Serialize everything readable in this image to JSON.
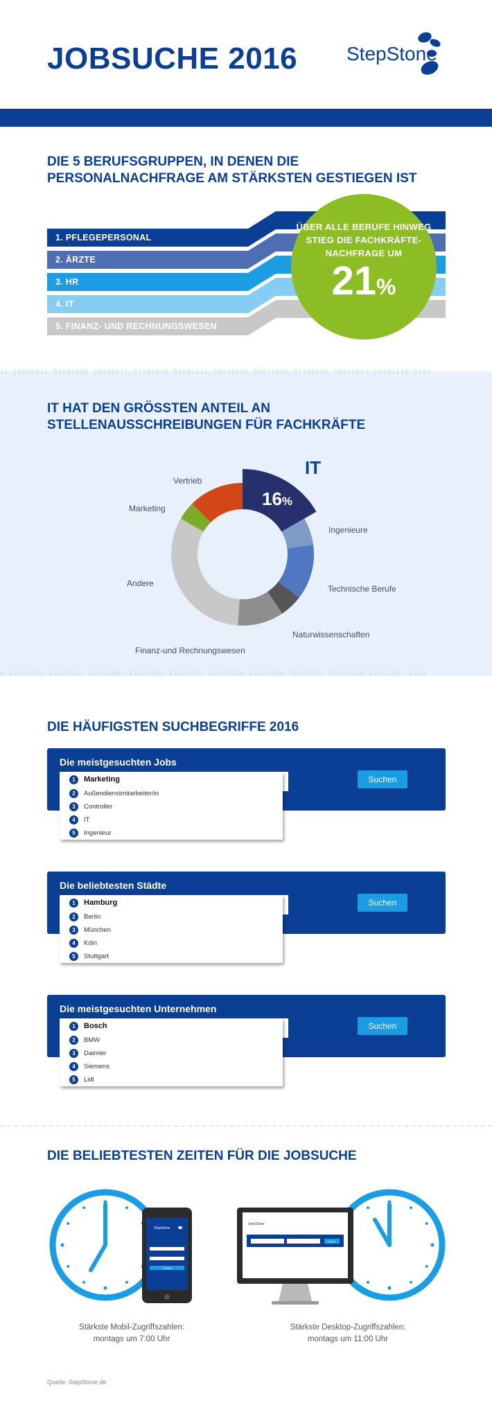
{
  "header": {
    "title": "JOBSUCHE 2016",
    "logo": "StepStone"
  },
  "section1": {
    "title": "DIE 5 BERUFSGRUPPEN, IN DENEN DIE PERSONALNACHFRAGE AM STÄRKSTEN GESTIEGEN IST",
    "rows": [
      {
        "label": "1. PFLEGEPERSONAL",
        "color": "#0a3f95"
      },
      {
        "label": "2. ÄRZTE",
        "color": "#4f6db2"
      },
      {
        "label": "3. HR",
        "color": "#1a9de2"
      },
      {
        "label": "4. IT",
        "color": "#87cdf3"
      },
      {
        "label": "5. FINANZ- UND RECHNUNGSWESEN",
        "color": "#c8c8c8"
      }
    ],
    "circle_text": "ÜBER ALLE BERUFE HINWEG STIEG DIE FACHKRÄFTE-NACHFRAGE UM",
    "circle_value": "21",
    "circle_unit": "%",
    "circle_color": "#8cbd24"
  },
  "section2": {
    "title": "IT HAT DEN GRÖSSTEN ANTEIL AN STELLENAUSSCHREIBUNGEN FÜR FACHKRÄFTE",
    "binary_top": "11 10010011 01001000 10100111 01101010 01001111 00110101 00011001 01100101 10011011 10101110 0101",
    "binary_bottom": "0 11001001 11100111 10011001 11101001 11100101 10110110 11101000 10100011 00010110 11001001 1110",
    "highlight_label": "IT",
    "highlight_value": "16",
    "highlight_unit": "%"
  },
  "chart_data": {
    "type": "pie",
    "title": "IT HAT DEN GRÖSSTEN ANTEIL AN STELLENAUSSCHREIBUNGEN FÜR FACHKRÄFTE",
    "series": [
      {
        "name": "IT",
        "value": 16,
        "color": "#26306c"
      },
      {
        "name": "Ingenieure",
        "value": 6,
        "color": "#7e9bc8"
      },
      {
        "name": "Technische Berufe",
        "value": 12,
        "color": "#5077c2"
      },
      {
        "name": "Naturwissenschaften",
        "value": 5,
        "color": "#555555"
      },
      {
        "name": "Finanz-und Rechnungswesen",
        "value": 10,
        "color": "#8e8e8e"
      },
      {
        "name": "Andere",
        "value": 31,
        "color": "#c8c8c8"
      },
      {
        "name": "Marketing",
        "value": 4,
        "color": "#79ad29"
      },
      {
        "name": "Vertrieb",
        "value": 12,
        "color": "#d34618"
      }
    ]
  },
  "section3": {
    "title": "DIE HÄUFIGSTEN SUCHBEGRIFFE 2016",
    "boxes": [
      {
        "title": "Die meistgesuchten Jobs",
        "button": "Suchen",
        "items": [
          "Marketing",
          "Außendienstmitarbeiter/in",
          "Controller",
          "IT",
          "Ingenieur"
        ]
      },
      {
        "title": "Die beliebtesten Städte",
        "button": "Suchen",
        "items": [
          "Hamburg",
          "Berlin",
          "München",
          "Köln",
          "Stuttgart"
        ]
      },
      {
        "title": "Die meistgesuchten Unternehmen",
        "button": "Suchen",
        "items": [
          "Bosch",
          "BMW",
          "Daimler",
          "Siemens",
          "Lidl"
        ]
      }
    ]
  },
  "section4": {
    "title": "DIE BELIEBTESTEN ZEITEN FÜR DIE JOBSUCHE",
    "mobile_caption_1": "Stärkste Mobil-Zugriffszahlen:",
    "mobile_caption_2": "montags um 7:00 Uhr",
    "desktop_caption_1": "Stärkste Desktop-Zugriffszahlen:",
    "desktop_caption_2": "montags um 11:00 Uhr",
    "mobile_hour": 7,
    "desktop_hour": 11,
    "phone_logo": "StepStone",
    "phone_button": "Suchen",
    "monitor_logo": "StepStone",
    "monitor_button": "Suchen"
  },
  "source": "Quelle: StepStone.de"
}
